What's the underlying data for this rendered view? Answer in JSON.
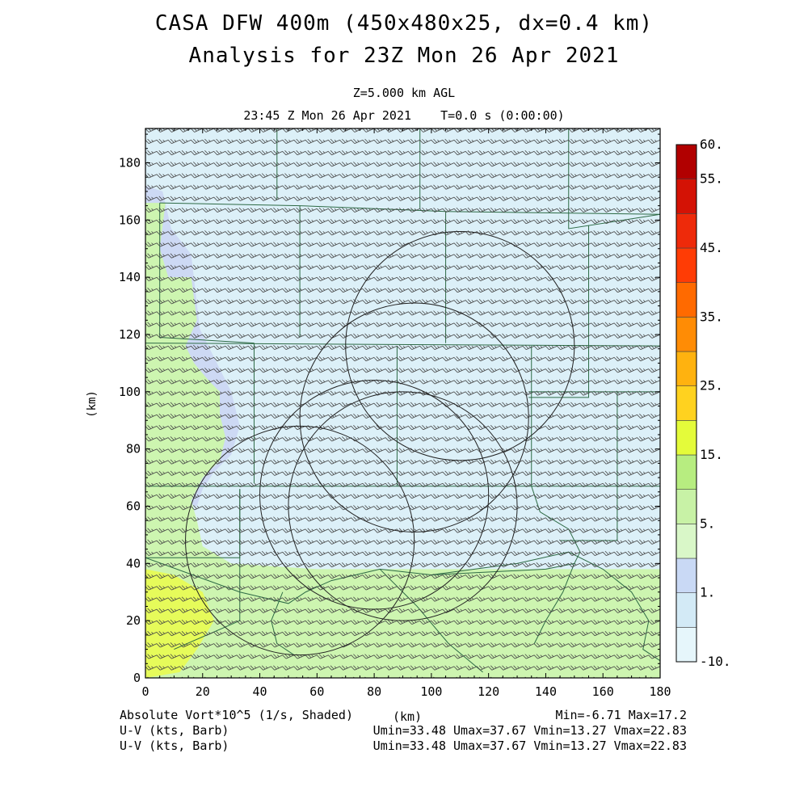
{
  "header": {
    "title_line1": "CASA DFW 400m (450x480x25, dx=0.4 km)",
    "title_line2": "Analysis for 23Z Mon 26 Apr 2021",
    "level": "Z=5.000 km AGL",
    "time": "23:45 Z Mon 26 Apr 2021    T=0.0 s (0:00:00)"
  },
  "footer": {
    "field_label": "Absolute Vort*10^5 (1/s, Shaded)",
    "xunit": "(km)",
    "minmax": "Min=-6.71 Max=17.2",
    "wind_label_1": "U-V (kts, Barb)",
    "wind_stats_1": "Umin=33.48 Umax=37.67 Vmin=13.27 Vmax=22.83",
    "wind_label_2": "U-V (kts, Barb)",
    "wind_stats_2": "Umin=33.48 Umax=37.67 Vmin=13.27 Vmax=22.83"
  },
  "chart_data": {
    "type": "heatmap",
    "xlabel": "",
    "ylabel": "(km)",
    "xlim": [
      0,
      180
    ],
    "ylim": [
      0,
      192
    ],
    "xticks": [
      0,
      20,
      40,
      60,
      80,
      100,
      120,
      140,
      160,
      180
    ],
    "yticks": [
      0,
      20,
      40,
      60,
      80,
      100,
      120,
      140,
      160,
      180
    ],
    "colorbar": {
      "colors": [
        "#e6f6fb",
        "#d3eaf6",
        "#c9d9f5",
        "#d9f7c8",
        "#c8f2a6",
        "#b7ed80",
        "#e4fb3a",
        "#ffd21f",
        "#ffb20f",
        "#ff8c05",
        "#ff6a00",
        "#ff3c05",
        "#ee2a0a",
        "#d41205",
        "#b10000"
      ],
      "tick_labels": [
        "-10.",
        "1.",
        "5.",
        "15.",
        "25.",
        "35.",
        "45.",
        "55.",
        "60."
      ],
      "tick_bin_index": [
        0,
        2,
        4,
        6,
        8,
        10,
        12,
        14,
        15
      ]
    },
    "field_regions": [
      {
        "label": "background",
        "value": 0,
        "color": "#dcf0f8"
      },
      {
        "label": "west-strip",
        "value": 2,
        "color": "#cdd9f4"
      },
      {
        "label": "southern-band",
        "value": 6,
        "color": "#cdf5b0"
      },
      {
        "label": "southwest-max",
        "value": 12,
        "color": "#e6fb5a"
      }
    ],
    "wind": {
      "u_kts": [
        33.48,
        37.67
      ],
      "v_kts": [
        13.27,
        22.83
      ],
      "barb_spacing_km": 4
    },
    "radar_rings": [
      {
        "x": 54,
        "y": 48,
        "r": 40
      },
      {
        "x": 94,
        "y": 91,
        "r": 40
      },
      {
        "x": 80,
        "y": 64,
        "r": 40
      },
      {
        "x": 90,
        "y": 60,
        "r": 40
      },
      {
        "x": 110,
        "y": 116,
        "r": 40
      }
    ]
  }
}
